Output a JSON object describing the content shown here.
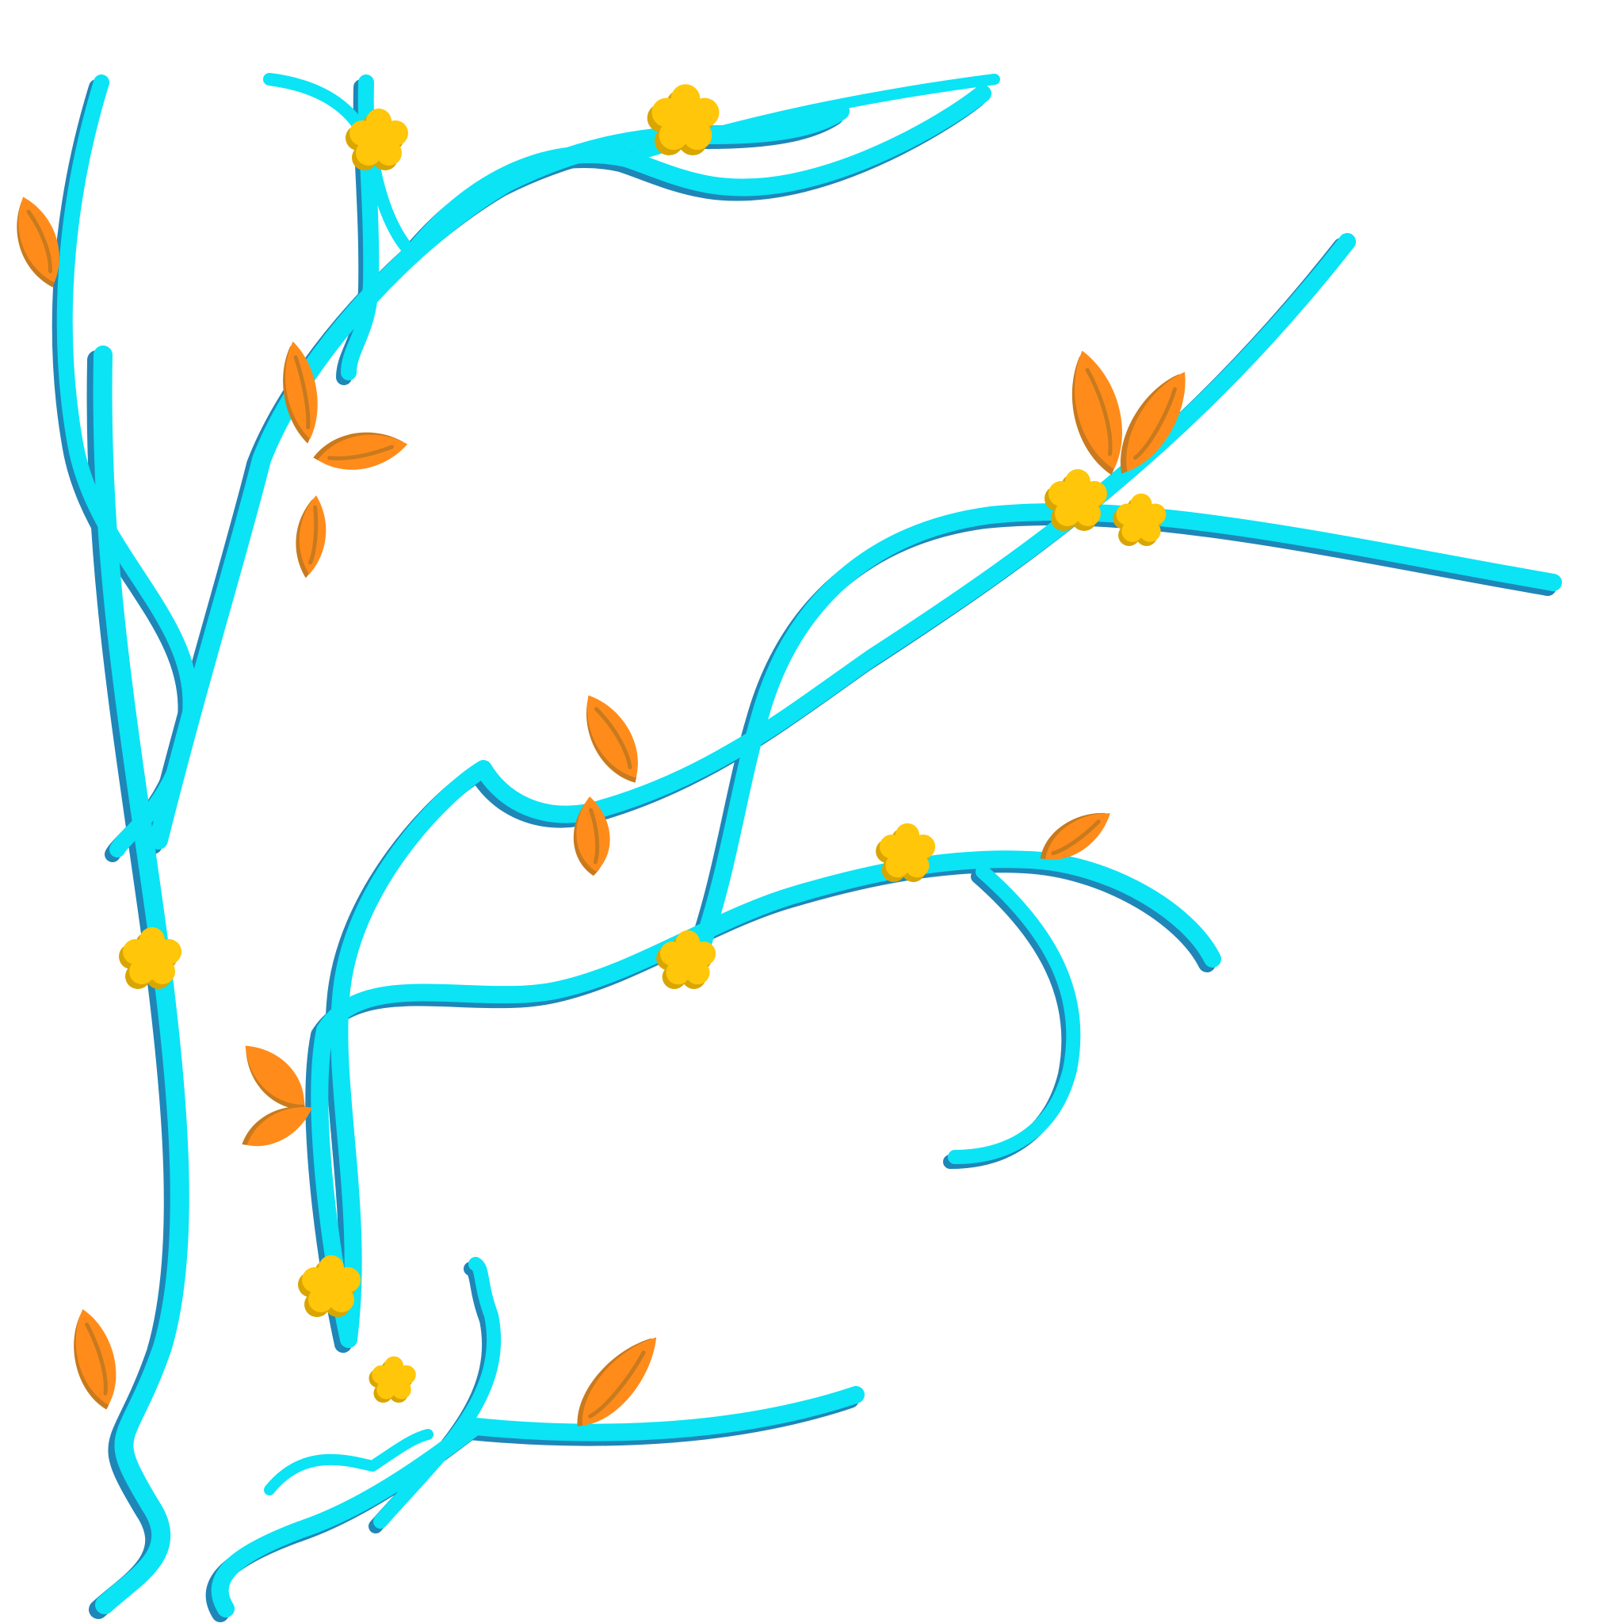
{
  "artwork": {
    "subject": "vine-branches",
    "colors": {
      "background": "#ffffff",
      "stem": "#0ae4f5",
      "stem_shadow": "#1f86b8",
      "leaf": "#ff8c1a",
      "leaf_shadow": "#c97a1e",
      "flower": "#ffc60a",
      "flower_shadow": "#d9a500"
    }
  }
}
